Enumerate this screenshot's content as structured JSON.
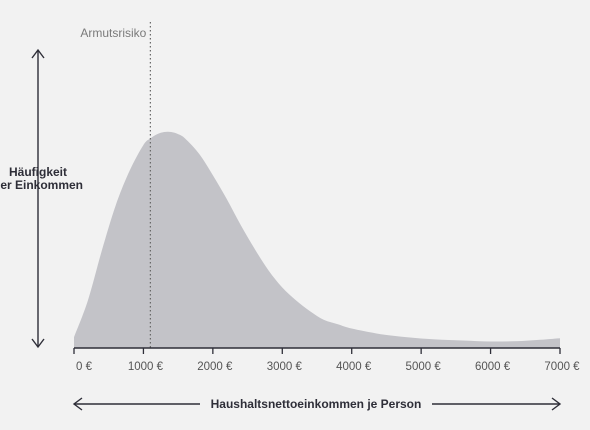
{
  "chart_data": {
    "type": "area",
    "title": "",
    "xlabel": "Haushaltsnettoeinkommen je Person",
    "ylabel_lines": [
      "Häufigkeit",
      "der Einkommen"
    ],
    "x_ticks": [
      0,
      1000,
      2000,
      3000,
      4000,
      5000,
      6000,
      7000
    ],
    "x_tick_labels": [
      "0 €",
      "1000 €",
      "2000 €",
      "3000 €",
      "4000 €",
      "5000 €",
      "6000 €",
      "7000 €"
    ],
    "xlim": [
      0,
      7000
    ],
    "ylim": [
      0,
      1
    ],
    "grid": false,
    "series": [
      {
        "x": [
          0,
          200,
          400,
          600,
          800,
          1000,
          1100,
          1200,
          1300,
          1400,
          1500,
          1600,
          1800,
          2000,
          2200,
          2400,
          2600,
          2800,
          3000,
          3200,
          3400,
          3600,
          3800,
          4000,
          4400,
          4800,
          5200,
          5600,
          6000,
          6400,
          6800,
          7000
        ],
        "y": [
          0.05,
          0.22,
          0.45,
          0.66,
          0.82,
          0.94,
          0.97,
          0.99,
          1.0,
          1.0,
          0.99,
          0.97,
          0.9,
          0.8,
          0.69,
          0.57,
          0.46,
          0.36,
          0.28,
          0.22,
          0.17,
          0.13,
          0.11,
          0.09,
          0.065,
          0.05,
          0.04,
          0.035,
          0.03,
          0.032,
          0.04,
          0.045
        ]
      }
    ],
    "annotations": [
      {
        "type": "vline",
        "x": 1100,
        "label": "Armutsrisiko"
      }
    ],
    "colors": {
      "area": "#c3c3c8",
      "axis": "#2e2e38",
      "annotation": "#666666",
      "background": "#f2f2f2"
    }
  }
}
